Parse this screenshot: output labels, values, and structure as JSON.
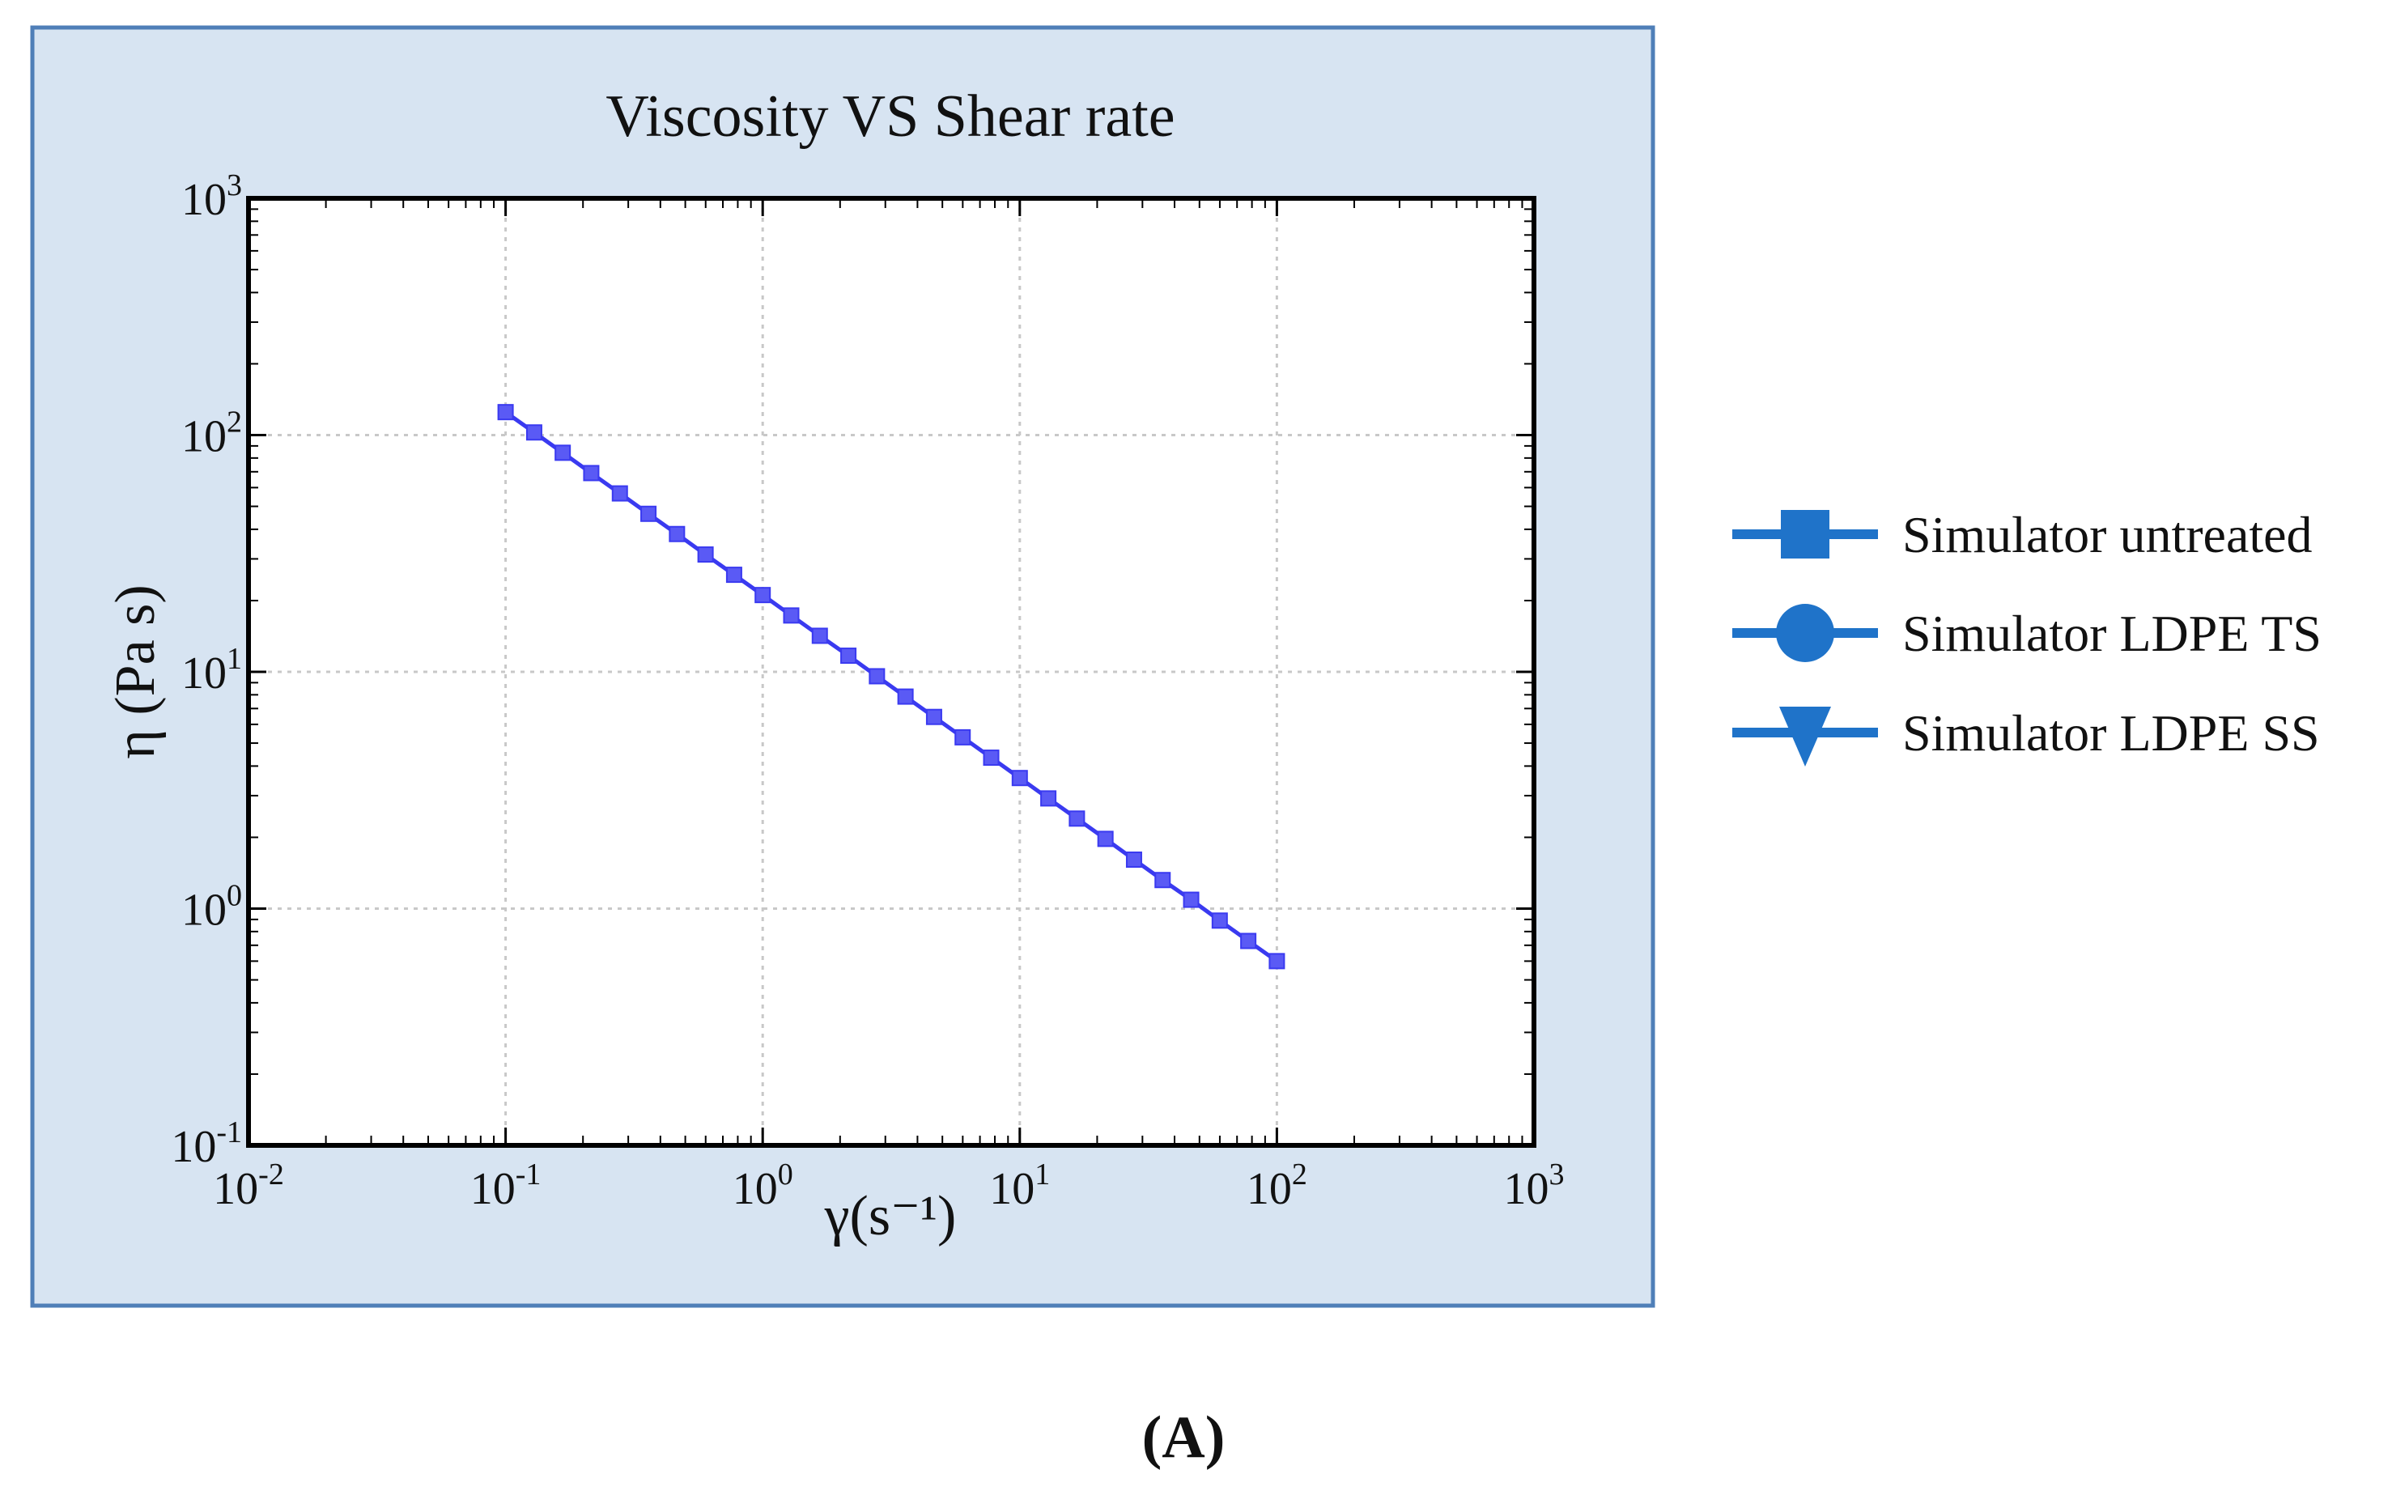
{
  "chart_data": {
    "type": "line",
    "title": "Viscosity VS Shear rate",
    "xlabel": "γ(s⁻¹)",
    "ylabel": "η (Pa s)",
    "x_scale": "log",
    "y_scale": "log",
    "xlim": [
      0.01,
      1000
    ],
    "ylim": [
      0.1,
      1000
    ],
    "x_ticks": [
      {
        "value": 0.01,
        "base": "10",
        "exp": "-2"
      },
      {
        "value": 0.1,
        "base": "10",
        "exp": "-1"
      },
      {
        "value": 1,
        "base": "10",
        "exp": "0"
      },
      {
        "value": 10,
        "base": "10",
        "exp": "1"
      },
      {
        "value": 100,
        "base": "10",
        "exp": "2"
      },
      {
        "value": 1000,
        "base": "10",
        "exp": "3"
      }
    ],
    "y_ticks": [
      {
        "value": 0.1,
        "base": "10",
        "exp": "-1"
      },
      {
        "value": 1,
        "base": "10",
        "exp": "0"
      },
      {
        "value": 10,
        "base": "10",
        "exp": "1"
      },
      {
        "value": 100,
        "base": "10",
        "exp": "2"
      },
      {
        "value": 1000,
        "base": "10",
        "exp": "3"
      }
    ],
    "grid": true,
    "legend_position": "right-outside",
    "series": [
      {
        "name": "Simulator untreated",
        "marker": "square",
        "color": "#1f73c9",
        "x": [
          0.1,
          0.1292,
          0.1668,
          0.2154,
          0.2783,
          0.3594,
          0.4642,
          0.5995,
          0.7743,
          1.0,
          1.2915,
          1.6681,
          2.1544,
          2.7826,
          3.5938,
          4.6416,
          5.9948,
          7.7426,
          10.0,
          12.9155,
          16.681,
          21.5443,
          27.8256,
          35.9381,
          46.4159,
          59.9484,
          77.4264,
          100.0
        ],
        "y": [
          125.0,
          102.6,
          84.2,
          69.1,
          56.7,
          46.5,
          38.2,
          31.3,
          25.7,
          21.1,
          17.3,
          14.2,
          11.7,
          9.58,
          7.86,
          6.45,
          5.29,
          4.34,
          3.56,
          2.92,
          2.4,
          1.97,
          1.61,
          1.32,
          1.09,
          0.89,
          0.73,
          0.6
        ]
      },
      {
        "name": "Simulator LDPE TS",
        "marker": "circle",
        "color": "#1f73c9",
        "x": [],
        "y": []
      },
      {
        "name": "Simulator LDPE SS",
        "marker": "triangle-down",
        "color": "#1f73c9",
        "x": [],
        "y": []
      }
    ],
    "plotted_line_color": "#3a3af0",
    "panel_color": "#d7e4f2",
    "panel_border_color": "#4f7fb8",
    "caption": "(A)"
  }
}
